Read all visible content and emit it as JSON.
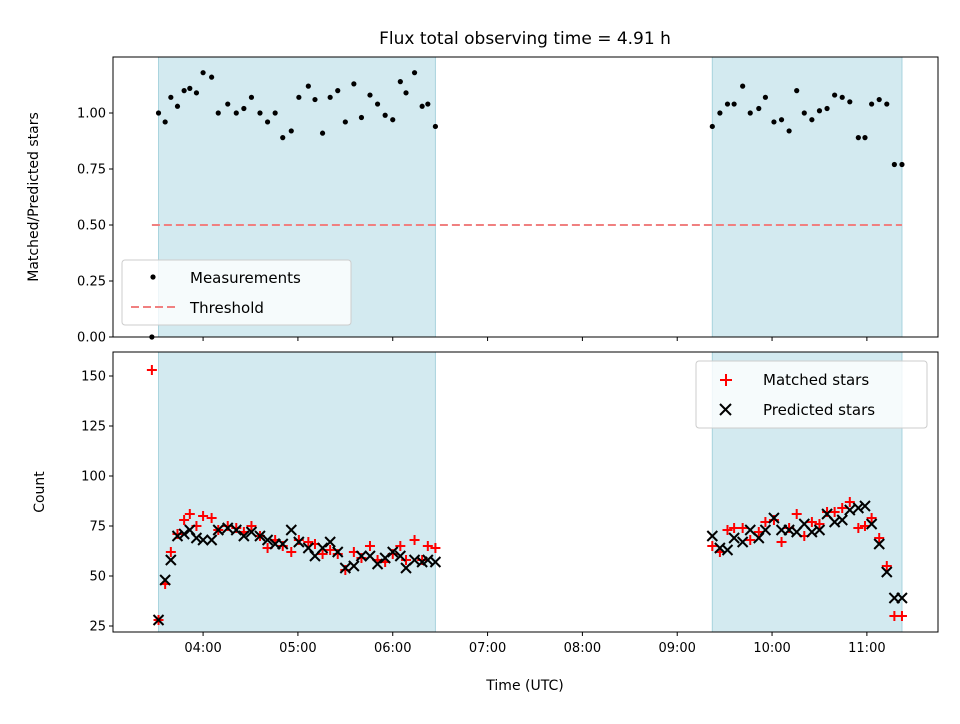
{
  "chart_data": {
    "title": "Flux total observing time = 4.91 h",
    "xlabel": "Time (UTC)",
    "x_tick_labels": [
      "04:00",
      "05:00",
      "06:00",
      "07:00",
      "08:00",
      "09:00",
      "10:00",
      "11:00"
    ],
    "x_tick_values": [
      4,
      5,
      6,
      7,
      8,
      9,
      10,
      11
    ],
    "xlim": [
      3.05,
      11.75
    ],
    "observing_windows": [
      [
        3.53,
        6.45
      ],
      [
        9.37,
        11.37
      ]
    ],
    "colors": {
      "window_fill": "#d3eaf0",
      "window_edge": "#a9d3de",
      "measurement": "#000000",
      "threshold": "#f08080",
      "matched": "#ff0000",
      "predicted": "#000000"
    },
    "panels": [
      {
        "type": "scatter",
        "ylabel": "Matched/Predicted stars",
        "ylim": [
          0,
          1.25
        ],
        "y_tick_labels": [
          "0.00",
          "0.25",
          "0.50",
          "0.75",
          "1.00"
        ],
        "y_tick_values": [
          0,
          0.25,
          0.5,
          0.75,
          1.0
        ],
        "legend_position": "lower-left",
        "threshold": {
          "name": "Threshold",
          "y": 0.5,
          "x_range": [
            3.46,
            11.37
          ]
        },
        "series": [
          {
            "name": "Measurements",
            "x": [
              3.46,
              3.53,
              3.6,
              3.66,
              3.73,
              3.8,
              3.86,
              3.93,
              4.0,
              4.09,
              4.16,
              4.26,
              4.35,
              4.43,
              4.51,
              4.6,
              4.68,
              4.76,
              4.84,
              4.93,
              5.01,
              5.11,
              5.18,
              5.26,
              5.34,
              5.42,
              5.5,
              5.59,
              5.67,
              5.76,
              5.84,
              5.92,
              6.0,
              6.08,
              6.14,
              6.23,
              6.31,
              6.37,
              6.45,
              9.37,
              9.45,
              9.53,
              9.6,
              9.69,
              9.77,
              9.86,
              9.93,
              10.02,
              10.1,
              10.18,
              10.26,
              10.34,
              10.42,
              10.5,
              10.58,
              10.66,
              10.74,
              10.82,
              10.91,
              10.98,
              11.05,
              11.13,
              11.21,
              11.29,
              11.37
            ],
            "y": [
              0.0,
              1.0,
              0.96,
              1.07,
              1.03,
              1.1,
              1.11,
              1.09,
              1.18,
              1.16,
              1.0,
              1.04,
              1.0,
              1.02,
              1.07,
              1.0,
              0.96,
              1.0,
              0.89,
              0.92,
              1.07,
              1.12,
              1.06,
              0.91,
              1.07,
              1.1,
              0.96,
              1.13,
              0.98,
              1.08,
              1.04,
              0.99,
              0.97,
              1.14,
              1.09,
              1.18,
              1.03,
              1.04,
              0.94,
              0.94,
              1.0,
              1.04,
              1.04,
              1.12,
              1.0,
              1.02,
              1.07,
              0.96,
              0.97,
              0.92,
              1.1,
              1.0,
              0.97,
              1.01,
              1.02,
              1.08,
              1.07,
              1.05,
              0.89,
              0.89,
              1.04,
              1.06,
              1.04,
              0.77,
              0.77
            ]
          }
        ]
      },
      {
        "type": "scatter",
        "ylabel": "Count",
        "ylim": [
          22,
          162
        ],
        "y_tick_labels": [
          "25",
          "50",
          "75",
          "100",
          "125",
          "150"
        ],
        "y_tick_values": [
          25,
          50,
          75,
          100,
          125,
          150
        ],
        "legend_position": "upper-right",
        "series": [
          {
            "name": "Matched stars",
            "marker": "plus",
            "x": [
              3.46,
              3.53,
              3.6,
              3.66,
              3.73,
              3.8,
              3.86,
              3.93,
              4.0,
              4.09,
              4.16,
              4.26,
              4.35,
              4.43,
              4.51,
              4.6,
              4.68,
              4.76,
              4.84,
              4.93,
              5.01,
              5.11,
              5.18,
              5.26,
              5.34,
              5.42,
              5.5,
              5.59,
              5.67,
              5.76,
              5.84,
              5.92,
              6.0,
              6.08,
              6.14,
              6.23,
              6.31,
              6.37,
              6.45,
              9.37,
              9.45,
              9.53,
              9.6,
              9.69,
              9.77,
              9.86,
              9.93,
              10.02,
              10.1,
              10.18,
              10.26,
              10.34,
              10.42,
              10.5,
              10.58,
              10.66,
              10.74,
              10.82,
              10.91,
              10.98,
              11.05,
              11.13,
              11.21,
              11.29,
              11.37
            ],
            "y": [
              153,
              28,
              46,
              62,
              71,
              78,
              81,
              75,
              80,
              79,
              73,
              75,
              74,
              72,
              75,
              70,
              64,
              68,
              65,
              62,
              68,
              67,
              66,
              61,
              63,
              61,
              53,
              62,
              59,
              65,
              58,
              57,
              61,
              65,
              58,
              68,
              58,
              65,
              64,
              65,
              62,
              73,
              74,
              74,
              68,
              72,
              77,
              78,
              67,
              74,
              81,
              70,
              77,
              76,
              82,
              82,
              84,
              87,
              74,
              75,
              79,
              69,
              55,
              30,
              30
            ]
          },
          {
            "name": "Predicted stars",
            "marker": "x",
            "x": [
              3.53,
              3.6,
              3.66,
              3.73,
              3.8,
              3.86,
              3.93,
              4.0,
              4.09,
              4.16,
              4.26,
              4.35,
              4.43,
              4.51,
              4.6,
              4.68,
              4.76,
              4.84,
              4.93,
              5.01,
              5.11,
              5.18,
              5.26,
              5.34,
              5.42,
              5.5,
              5.59,
              5.67,
              5.76,
              5.84,
              5.92,
              6.0,
              6.08,
              6.14,
              6.23,
              6.31,
              6.37,
              6.45,
              9.37,
              9.45,
              9.53,
              9.6,
              9.69,
              9.77,
              9.86,
              9.93,
              10.02,
              10.1,
              10.18,
              10.26,
              10.34,
              10.42,
              10.5,
              10.58,
              10.66,
              10.74,
              10.82,
              10.91,
              10.98,
              11.05,
              11.13,
              11.21,
              11.29,
              11.37
            ],
            "y": [
              28,
              48,
              58,
              70,
              71,
              73,
              69,
              68,
              68,
              73,
              74,
              73,
              70,
              72,
              70,
              68,
              66,
              66,
              73,
              67,
              64,
              60,
              64,
              67,
              62,
              54,
              55,
              60,
              60,
              56,
              59,
              62,
              60,
              54,
              58,
              57,
              58,
              57,
              70,
              64,
              63,
              69,
              67,
              73,
              69,
              73,
              79,
              73,
              73,
              72,
              76,
              72,
              73,
              81,
              77,
              78,
              83,
              84,
              85,
              76,
              66,
              52,
              39,
              39
            ]
          }
        ]
      }
    ]
  }
}
